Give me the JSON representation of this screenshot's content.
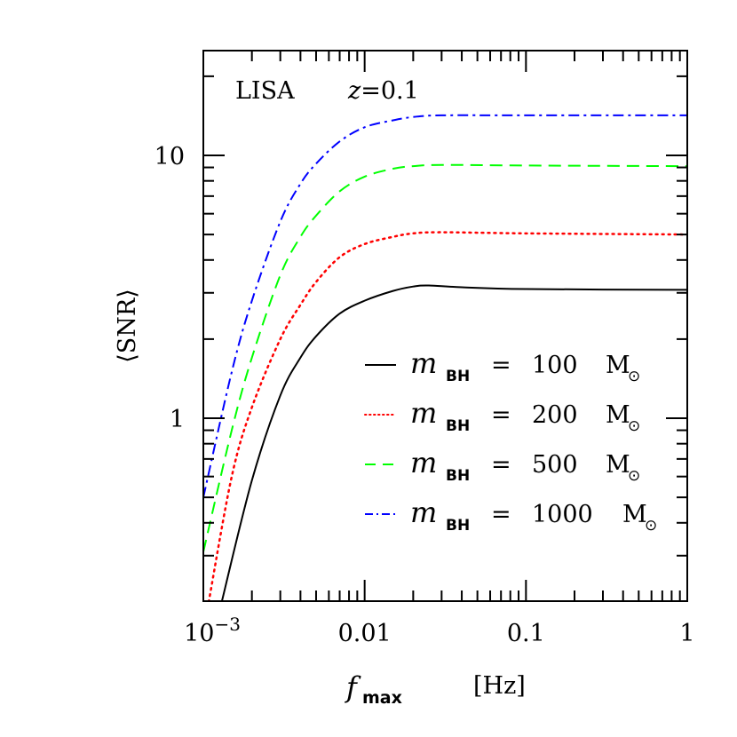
{
  "chart_data": {
    "type": "line",
    "title": "",
    "annotations": [
      "LISA",
      "z = 0.1"
    ],
    "xlabel": "f_max  [Hz]",
    "ylabel": "⟨SNR⟩",
    "xscale": "log",
    "yscale": "log",
    "xlim": [
      0.001,
      1
    ],
    "ylim": [
      0.2,
      25
    ],
    "x_ticks": [
      {
        "value": 0.001,
        "label": "10",
        "sup": "−3"
      },
      {
        "value": 0.01,
        "label": "0.01",
        "sup": ""
      },
      {
        "value": 0.1,
        "label": "0.1",
        "sup": ""
      },
      {
        "value": 1,
        "label": "1",
        "sup": ""
      }
    ],
    "y_ticks": [
      {
        "value": 1,
        "label": "1"
      },
      {
        "value": 10,
        "label": "10"
      }
    ],
    "grid": false,
    "legend_position": "lower right",
    "series": [
      {
        "name": "m_BH = 100 M☉",
        "mass_label": "100",
        "color": "#000000",
        "style": "solid",
        "x": [
          0.0013,
          0.002,
          0.003,
          0.004,
          0.005,
          0.007,
          0.01,
          0.015,
          0.02,
          0.025,
          0.04,
          0.1,
          1
        ],
        "y": [
          0.2,
          0.58,
          1.22,
          1.7,
          2.05,
          2.5,
          2.8,
          3.05,
          3.17,
          3.2,
          3.15,
          3.1,
          3.08
        ]
      },
      {
        "name": "m_BH = 200 M☉",
        "mass_label": "200",
        "color": "#ff0000",
        "style": "dotted",
        "x": [
          0.00108,
          0.0015,
          0.002,
          0.003,
          0.004,
          0.005,
          0.007,
          0.01,
          0.015,
          0.02,
          0.03,
          0.1,
          1
        ],
        "y": [
          0.2,
          0.6,
          1.1,
          2.0,
          2.7,
          3.3,
          4.1,
          4.6,
          4.9,
          5.05,
          5.1,
          5.05,
          5.0
        ]
      },
      {
        "name": "m_BH = 500 M☉",
        "mass_label": "500",
        "color": "#00ff00",
        "style": "dashed",
        "x": [
          0.001,
          0.0015,
          0.002,
          0.003,
          0.004,
          0.005,
          0.007,
          0.01,
          0.015,
          0.02,
          0.03,
          0.1,
          1
        ],
        "y": [
          0.31,
          0.9,
          1.7,
          3.5,
          4.9,
          5.9,
          7.3,
          8.3,
          8.9,
          9.1,
          9.2,
          9.15,
          9.1
        ]
      },
      {
        "name": "m_BH = 1000 M☉",
        "mass_label": "1000",
        "color": "#0000ff",
        "style": "dashdot",
        "x": [
          0.001,
          0.0015,
          0.002,
          0.003,
          0.004,
          0.005,
          0.007,
          0.01,
          0.015,
          0.02,
          0.03,
          0.1,
          1
        ],
        "y": [
          0.5,
          1.5,
          2.8,
          5.6,
          7.8,
          9.3,
          11.3,
          12.8,
          13.6,
          14.0,
          14.2,
          14.2,
          14.2
        ]
      }
    ]
  },
  "labels": {
    "detector": "LISA",
    "redshift_var": "z",
    "redshift_eq": "=0.1",
    "xlabel_var": "f",
    "xlabel_sub": "max",
    "xlabel_unit": "[Hz]",
    "ylabel": "⟨SNR⟩",
    "legend_var": "m",
    "legend_sub": "BH",
    "legend_eq": "=",
    "legend_unit": "M",
    "legend_sun": "⊙"
  }
}
